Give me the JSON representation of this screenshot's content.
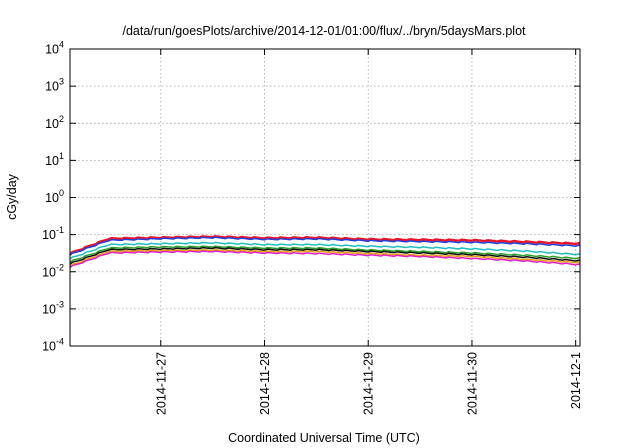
{
  "chart_data": {
    "type": "line",
    "title": "/data/run/goesPlots/archive/2014-12-01/01:00/flux/../bryn/5daysMars.plot",
    "xlabel": "Coordinated Universal Time (UTC)",
    "ylabel": "cGy/day",
    "yscale": "log",
    "ylim": [
      0.0001,
      10000
    ],
    "xlim": [
      "2014-11-26T03:00",
      "2014-12-01T01:00"
    ],
    "grid": true,
    "y_ticks": [
      {
        "value": 0.0001,
        "base": "10",
        "exp": "-4"
      },
      {
        "value": 0.001,
        "base": "10",
        "exp": "-3"
      },
      {
        "value": 0.01,
        "base": "10",
        "exp": "-2"
      },
      {
        "value": 0.1,
        "base": "10",
        "exp": "-1"
      },
      {
        "value": 1,
        "base": "10",
        "exp": "0"
      },
      {
        "value": 10,
        "base": "10",
        "exp": "1"
      },
      {
        "value": 100,
        "base": "10",
        "exp": "2"
      },
      {
        "value": 1000,
        "base": "10",
        "exp": "3"
      },
      {
        "value": 10000,
        "base": "10",
        "exp": "4"
      }
    ],
    "x_ticks": [
      {
        "value": "2014-11-27T00:00",
        "label": "2014-11-27"
      },
      {
        "value": "2014-11-28T00:00",
        "label": "2014-11-28"
      },
      {
        "value": "2014-11-29T00:00",
        "label": "2014-11-29"
      },
      {
        "value": "2014-11-30T00:00",
        "label": "2014-11-30"
      },
      {
        "value": "2014-12-01T00:00",
        "label": "2014-12-1"
      }
    ],
    "x": [
      "2014-11-26T03:00",
      "2014-11-26T12:00",
      "2014-11-27T00:00",
      "2014-11-27T12:00",
      "2014-11-28T00:00",
      "2014-11-28T12:00",
      "2014-11-29T00:00",
      "2014-11-29T12:00",
      "2014-11-30T00:00",
      "2014-11-30T12:00",
      "2014-12-01T01:00"
    ],
    "series": [
      {
        "color": "#e8142a",
        "values": [
          0.03,
          0.075,
          0.08,
          0.085,
          0.078,
          0.08,
          0.072,
          0.07,
          0.068,
          0.062,
          0.055
        ]
      },
      {
        "color": "#1f3fe0",
        "values": [
          0.028,
          0.068,
          0.075,
          0.08,
          0.072,
          0.074,
          0.066,
          0.063,
          0.06,
          0.055,
          0.048
        ]
      },
      {
        "color": "#1fbfbf",
        "values": [
          0.022,
          0.052,
          0.055,
          0.058,
          0.052,
          0.052,
          0.047,
          0.044,
          0.04,
          0.035,
          0.028
        ]
      },
      {
        "color": "#2ca02c",
        "values": [
          0.018,
          0.042,
          0.045,
          0.046,
          0.042,
          0.042,
          0.037,
          0.034,
          0.031,
          0.027,
          0.022
        ]
      },
      {
        "color": "#111111",
        "values": [
          0.016,
          0.038,
          0.04,
          0.042,
          0.038,
          0.038,
          0.034,
          0.031,
          0.028,
          0.024,
          0.019
        ]
      },
      {
        "color": "#e8a317",
        "values": [
          0.014,
          0.034,
          0.036,
          0.037,
          0.034,
          0.034,
          0.03,
          0.027,
          0.025,
          0.021,
          0.017
        ]
      },
      {
        "color": "#e020c8",
        "values": [
          0.013,
          0.031,
          0.033,
          0.034,
          0.031,
          0.03,
          0.027,
          0.025,
          0.022,
          0.019,
          0.015
        ]
      }
    ]
  }
}
